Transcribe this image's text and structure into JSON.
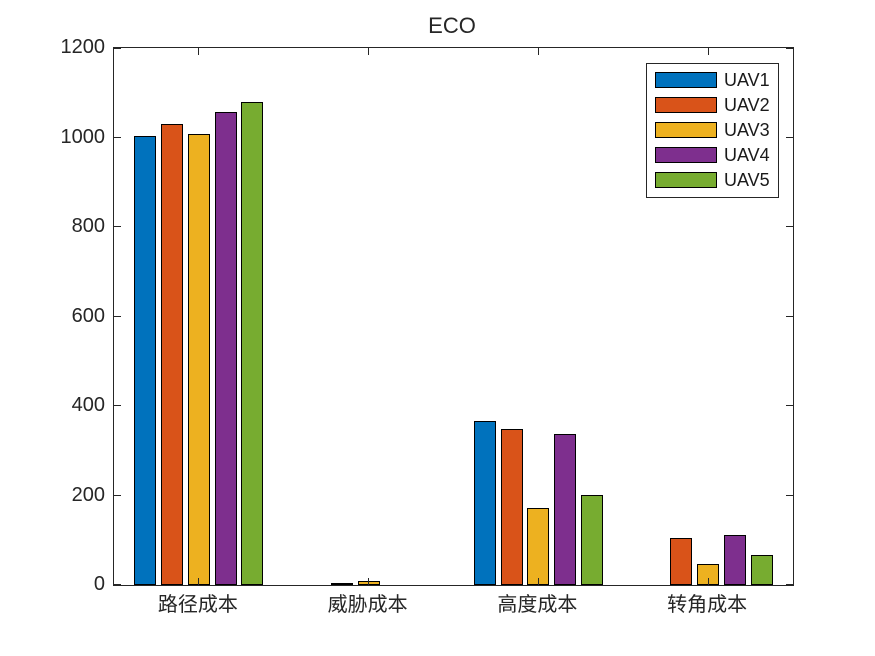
{
  "chart_data": {
    "type": "bar",
    "title": "ECO",
    "categories": [
      "路径成本",
      "威胁成本",
      "高度成本",
      "转角成本"
    ],
    "series": [
      {
        "name": "UAV1",
        "color": "#0072BD",
        "values": [
          1003,
          0,
          367,
          0
        ]
      },
      {
        "name": "UAV2",
        "color": "#D95319",
        "values": [
          1030,
          3,
          349,
          105
        ]
      },
      {
        "name": "UAV3",
        "color": "#EDB120",
        "values": [
          1008,
          8,
          172,
          48
        ]
      },
      {
        "name": "UAV4",
        "color": "#7E2F8E",
        "values": [
          1057,
          0,
          338,
          112
        ]
      },
      {
        "name": "UAV5",
        "color": "#77AC30",
        "values": [
          1079,
          0,
          201,
          66
        ]
      }
    ],
    "xlabel": "",
    "ylabel": "",
    "ylim": [
      0,
      1200
    ],
    "yticks": [
      0,
      200,
      400,
      600,
      800,
      1000,
      1200
    ],
    "grid": false,
    "legend": {
      "position": "top-right"
    },
    "bar_edge_color": "#000000",
    "axis_color": "#262626"
  }
}
